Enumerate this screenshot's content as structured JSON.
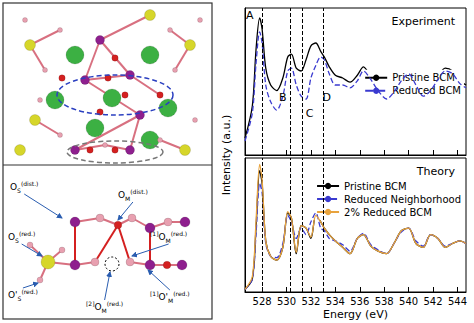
{
  "chart_data": [
    {
      "type": "line",
      "title": "Experiment",
      "ylabel": "Intensity (a.u.)",
      "x": [
        526.6,
        527.2,
        527.5,
        527.8,
        528.0,
        528.3,
        528.7,
        529.2,
        529.7,
        530.1,
        530.4,
        530.8,
        531.2,
        531.6,
        532.0,
        532.4,
        532.8,
        533.1,
        533.5,
        534.0,
        534.6,
        535.2,
        535.8,
        536.3,
        536.9,
        537.5,
        538.2,
        538.8,
        539.4,
        540.0,
        540.6,
        541.2,
        541.8,
        542.4,
        543.0,
        543.6,
        544.2,
        544.7
      ],
      "series": [
        {
          "name": "Pristine BCM",
          "color": "#000000",
          "line_style": "solid",
          "values": [
            0.12,
            0.35,
            0.75,
            0.98,
            0.9,
            0.62,
            0.5,
            0.46,
            0.55,
            0.7,
            0.72,
            0.62,
            0.6,
            0.68,
            0.78,
            0.8,
            0.74,
            0.7,
            0.63,
            0.57,
            0.55,
            0.52,
            0.57,
            0.63,
            0.56,
            0.48,
            0.42,
            0.47,
            0.55,
            0.6,
            0.52,
            0.44,
            0.48,
            0.56,
            0.62,
            0.6,
            0.53,
            0.5
          ]
        },
        {
          "name": "Reduced BCM",
          "color": "#3a3ad0",
          "line_style": "dashed",
          "values": [
            0.1,
            0.3,
            0.65,
            0.88,
            0.8,
            0.5,
            0.38,
            0.32,
            0.42,
            0.6,
            0.62,
            0.5,
            0.42,
            0.4,
            0.55,
            0.64,
            0.7,
            0.68,
            0.58,
            0.5,
            0.5,
            0.48,
            0.53,
            0.6,
            0.54,
            0.46,
            0.4,
            0.45,
            0.53,
            0.58,
            0.5,
            0.42,
            0.46,
            0.54,
            0.6,
            0.58,
            0.51,
            0.48
          ]
        }
      ],
      "xlim": [
        526.6,
        544.7
      ],
      "xticks": [
        528,
        530,
        532,
        534,
        536,
        538,
        540,
        542,
        544
      ],
      "ylim": [
        0,
        1.05
      ],
      "grid": false,
      "legend": "right",
      "tick_labels": false,
      "vlines": [
        528.0,
        530.3,
        531.3,
        533.0
      ],
      "annotations": [
        {
          "text": "A",
          "x": 527.0,
          "y": 1.0
        },
        {
          "text": "B",
          "x": 529.7,
          "y": 0.41
        },
        {
          "text": "C",
          "x": 531.9,
          "y": 0.3
        },
        {
          "text": "D",
          "x": 533.3,
          "y": 0.41
        }
      ]
    },
    {
      "type": "line",
      "title": "Theory",
      "xlabel": "Energy (eV)",
      "x": [
        526.6,
        527.2,
        527.5,
        527.8,
        528.0,
        528.3,
        528.7,
        529.2,
        529.7,
        530.1,
        530.4,
        530.8,
        531.2,
        531.6,
        532.0,
        532.4,
        532.8,
        533.1,
        533.5,
        534.0,
        534.6,
        535.2,
        535.8,
        536.3,
        536.9,
        537.5,
        538.2,
        538.8,
        539.4,
        540.0,
        540.6,
        541.2,
        541.8,
        542.4,
        543.0,
        543.6,
        544.2,
        544.7
      ],
      "series": [
        {
          "name": "Pristine BCM",
          "color": "#000000",
          "line_style": "solid",
          "values": [
            0.02,
            0.1,
            0.5,
            0.95,
            0.85,
            0.4,
            0.28,
            0.25,
            0.35,
            0.62,
            0.58,
            0.3,
            0.52,
            0.5,
            0.42,
            0.6,
            0.55,
            0.5,
            0.45,
            0.4,
            0.35,
            0.3,
            0.42,
            0.45,
            0.36,
            0.32,
            0.3,
            0.38,
            0.48,
            0.5,
            0.38,
            0.35,
            0.45,
            0.42,
            0.35,
            0.38,
            0.4,
            0.38
          ]
        },
        {
          "name": "Reduced Neighborhood",
          "color": "#3a3ad0",
          "line_style": "dashed",
          "values": [
            0.02,
            0.1,
            0.45,
            0.85,
            0.78,
            0.38,
            0.28,
            0.27,
            0.38,
            0.6,
            0.55,
            0.42,
            0.5,
            0.45,
            0.55,
            0.62,
            0.5,
            0.48,
            0.42,
            0.4,
            0.37,
            0.32,
            0.42,
            0.46,
            0.37,
            0.33,
            0.3,
            0.38,
            0.47,
            0.5,
            0.4,
            0.36,
            0.45,
            0.42,
            0.36,
            0.38,
            0.4,
            0.38
          ]
        },
        {
          "name": "2% Reduced BCM",
          "color": "#e8a33d",
          "line_style": "solid",
          "values": [
            0.02,
            0.12,
            0.55,
            1.0,
            0.88,
            0.4,
            0.28,
            0.25,
            0.35,
            0.63,
            0.58,
            0.31,
            0.52,
            0.5,
            0.43,
            0.6,
            0.55,
            0.5,
            0.45,
            0.4,
            0.35,
            0.3,
            0.42,
            0.45,
            0.36,
            0.32,
            0.3,
            0.38,
            0.48,
            0.5,
            0.38,
            0.35,
            0.45,
            0.42,
            0.35,
            0.38,
            0.4,
            0.38
          ]
        }
      ],
      "xlim": [
        526.6,
        544.7
      ],
      "xticks": [
        528,
        530,
        532,
        534,
        536,
        538,
        540,
        542,
        544
      ],
      "ylim": [
        0,
        1.05
      ],
      "grid": false,
      "legend": "upper right",
      "tick_labels": "x",
      "vlines": [
        528.0,
        530.3,
        531.3,
        533.0
      ]
    }
  ],
  "diagram": {
    "labels": [
      {
        "base": "O",
        "sub": "S",
        "sup": "(dist.)"
      },
      {
        "base": "O",
        "sub": "S",
        "sup": "(red.)"
      },
      {
        "base": "O'",
        "sub": "S",
        "sup": "(red.)"
      },
      {
        "base": "O",
        "sub": "M",
        "sup": "(dist.)"
      },
      {
        "pre": "[1]",
        "base": "O",
        "sub": "M",
        "sup": "(red.)"
      },
      {
        "pre": "[2]",
        "base": "O",
        "sub": "M",
        "sup": "(red.)"
      },
      {
        "pre": "[1]",
        "base": "O'",
        "sub": "M",
        "sup": "(red.)"
      }
    ]
  }
}
